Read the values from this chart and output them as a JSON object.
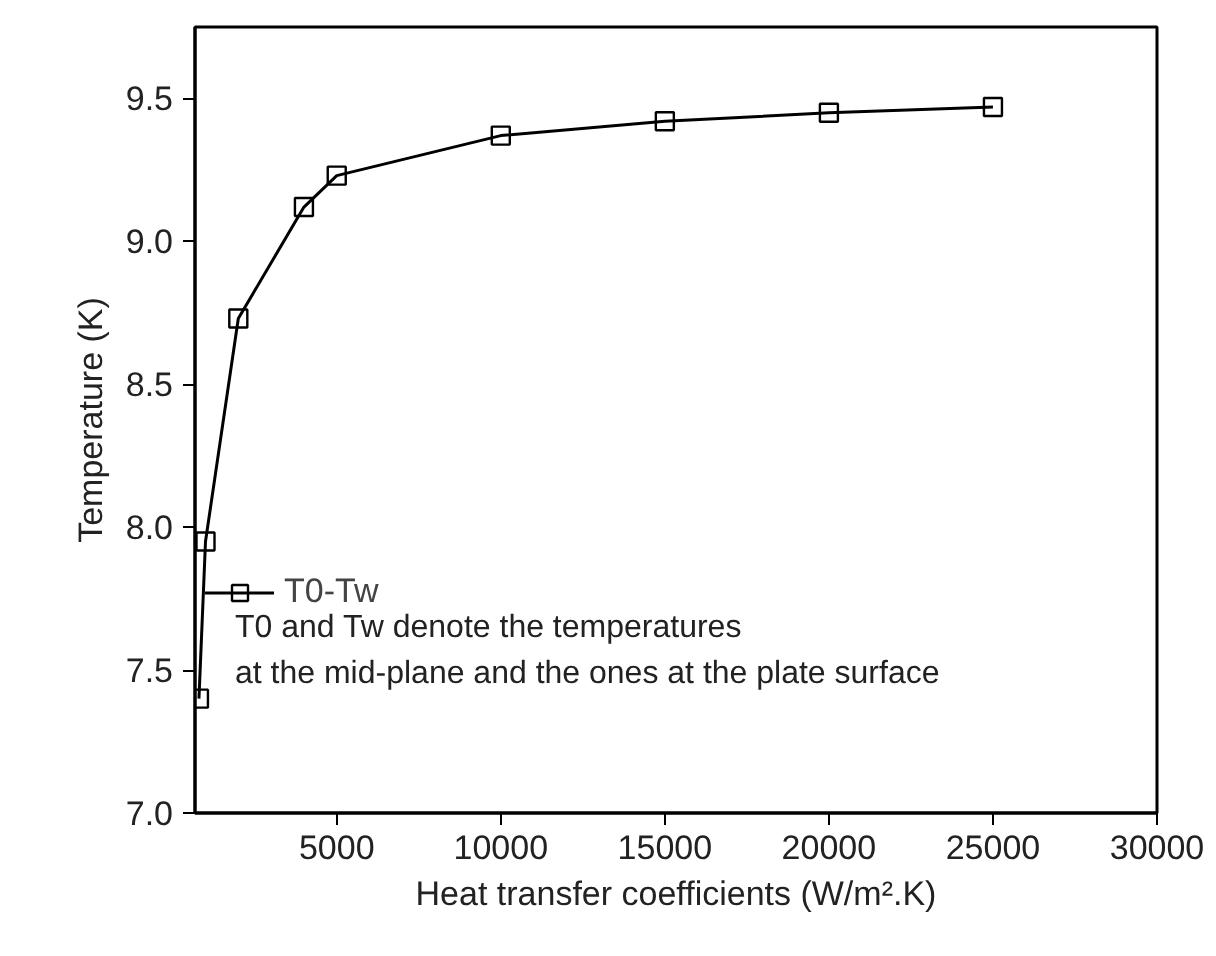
{
  "chart_data": {
    "type": "line",
    "xlabel": "Heat transfer coefficients (W/m².K)",
    "ylabel": "Temperature (K)",
    "x": [
      800,
      1000,
      2000,
      4000,
      5000,
      10000,
      15000,
      20000,
      25000
    ],
    "series": [
      {
        "name": "T0-Tw",
        "color": "#000000",
        "values": [
          7.4,
          7.95,
          8.73,
          9.12,
          9.23,
          9.37,
          9.42,
          9.45,
          9.47
        ]
      }
    ],
    "xlim": [
      680,
      30000
    ],
    "ylim": [
      7.0,
      9.75
    ],
    "xticks": [
      5000,
      10000,
      15000,
      20000,
      25000,
      30000
    ],
    "yticks": [
      {
        "value": 7.0,
        "label": "7.0"
      },
      {
        "value": 7.5,
        "label": "7.5"
      },
      {
        "value": 8.0,
        "label": "8.0"
      },
      {
        "value": 8.5,
        "label": "8.5"
      },
      {
        "value": 9.0,
        "label": "9.0"
      },
      {
        "value": 9.5,
        "label": "9.5"
      }
    ],
    "annotations": [
      "T0 and Tw denote the temperatures",
      "at the mid-plane and the ones at the plate surface"
    ],
    "marker": "square",
    "line_style": "solid",
    "grid": false,
    "legend": "bottom left"
  }
}
